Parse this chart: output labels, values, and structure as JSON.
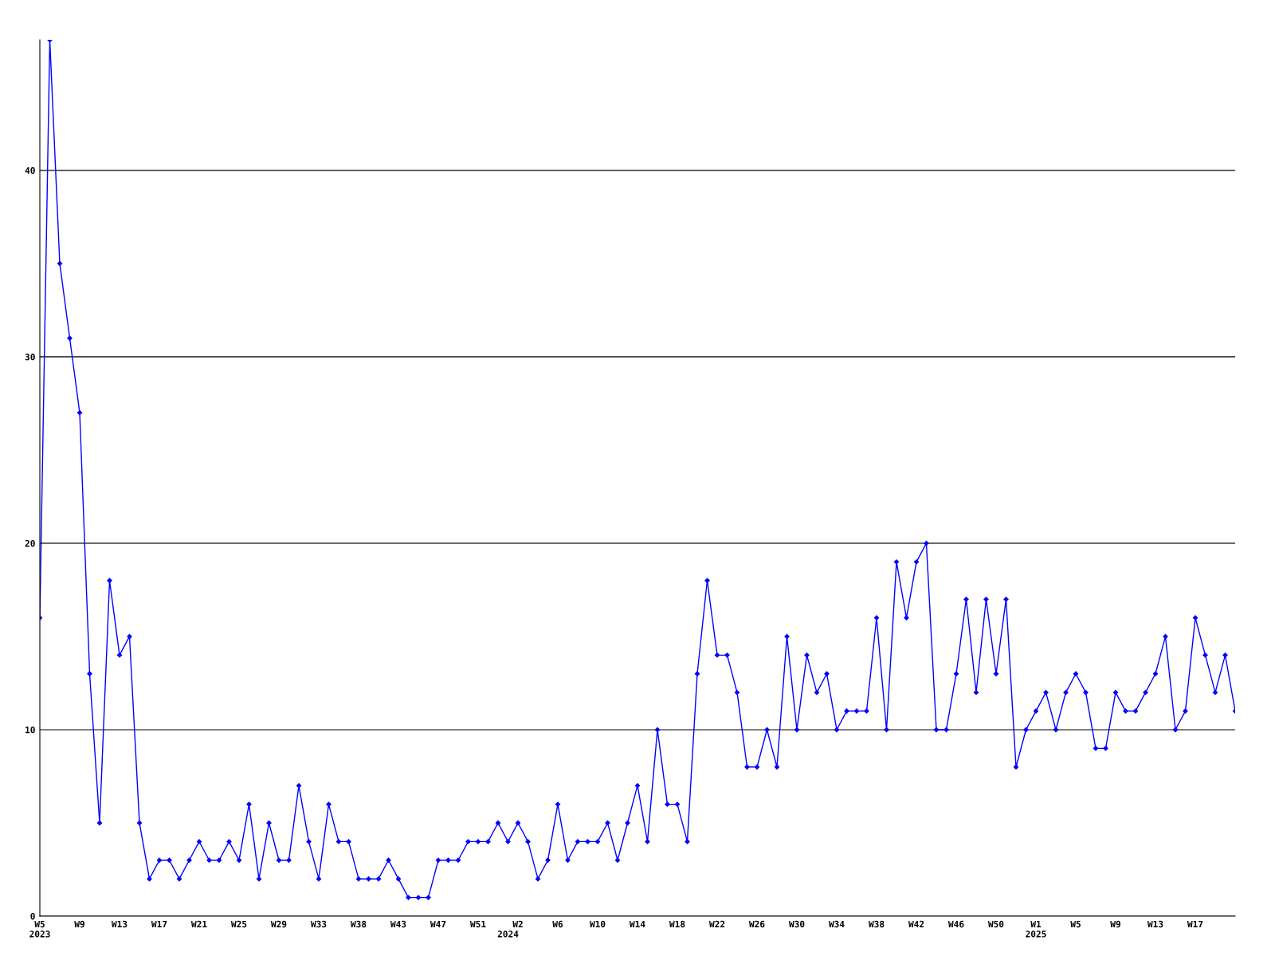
{
  "chart_data": {
    "type": "line",
    "marker": "diamond",
    "line_style": "solid",
    "grid": "y",
    "categories": [
      "W5\n2023",
      null,
      null,
      null,
      "W9",
      null,
      null,
      null,
      "W13",
      null,
      null,
      null,
      "W17",
      null,
      null,
      null,
      "W21",
      null,
      null,
      null,
      "W25",
      null,
      null,
      null,
      "W29",
      null,
      null,
      null,
      "W33",
      null,
      null,
      null,
      "W38",
      null,
      null,
      null,
      "W43",
      null,
      null,
      null,
      "W47",
      null,
      null,
      null,
      "W51",
      null,
      null,
      "\n2024",
      "W2",
      null,
      null,
      null,
      "W6",
      null,
      null,
      null,
      "W10",
      null,
      null,
      null,
      "W14",
      null,
      null,
      null,
      "W18",
      null,
      null,
      null,
      "W22",
      null,
      null,
      null,
      "W26",
      null,
      null,
      null,
      "W30",
      null,
      null,
      null,
      "W34",
      null,
      null,
      null,
      "W38",
      null,
      null,
      null,
      "W42",
      null,
      null,
      null,
      "W46",
      null,
      null,
      null,
      "W50",
      null,
      null,
      null,
      "W1\n2025",
      null,
      null,
      null,
      "W5",
      null,
      null,
      null,
      "W9",
      null,
      null,
      null,
      "W13",
      null,
      null,
      null,
      "W17",
      null,
      null,
      null,
      null
    ],
    "series": [
      {
        "color": "#0000ff",
        "values": [
          16,
          47,
          35,
          31,
          27,
          13,
          5,
          18,
          14,
          15,
          5,
          2,
          3,
          3,
          2,
          3,
          4,
          3,
          3,
          4,
          3,
          6,
          2,
          5,
          3,
          3,
          7,
          4,
          2,
          6,
          4,
          4,
          2,
          2,
          2,
          3,
          2,
          1,
          1,
          1,
          3,
          3,
          3,
          4,
          4,
          4,
          5,
          4,
          5,
          4,
          2,
          3,
          6,
          3,
          4,
          4,
          4,
          5,
          3,
          5,
          7,
          4,
          10,
          6,
          6,
          4,
          13,
          18,
          14,
          14,
          12,
          8,
          8,
          10,
          8,
          15,
          10,
          14,
          12,
          13,
          10,
          11,
          11,
          11,
          16,
          10,
          19,
          16,
          19,
          20,
          10,
          10,
          13,
          17,
          12,
          17,
          13,
          17,
          8,
          10,
          11,
          12,
          10,
          12,
          13,
          12,
          9,
          9,
          12,
          11,
          11,
          12,
          13,
          15,
          10,
          11,
          16,
          14,
          12,
          14,
          11
        ]
      }
    ],
    "ylim": [
      0,
      47
    ],
    "yticks": [
      0,
      10,
      20,
      30,
      40
    ]
  }
}
